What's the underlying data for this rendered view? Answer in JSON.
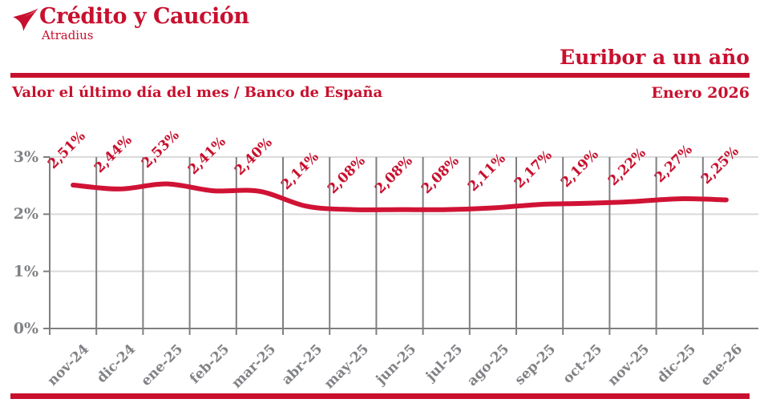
{
  "brand": {
    "name": "Crédito y Caución",
    "sub": "Atradius"
  },
  "header": {
    "title": "Euribor a un año",
    "subtitle": "Valor el último día del mes / Banco de España",
    "date": "Enero 2026"
  },
  "colors": {
    "red": "#C8102E",
    "line_red": "#D01335",
    "label_gray": "#808285",
    "grid_dark": "#7F7F7F",
    "grid_light": "#DADADA"
  },
  "chart_data": {
    "type": "line",
    "title": "Euribor a un año",
    "subtitle": "Valor el último día del mes / Banco de España",
    "categories": [
      "nov-24",
      "dic-24",
      "ene-25",
      "feb-25",
      "mar-25",
      "abr-25",
      "may-25",
      "jun-25",
      "jul-25",
      "ago-25",
      "sep-25",
      "oct-25",
      "nov-25",
      "dic-25",
      "ene-26"
    ],
    "values": [
      2.51,
      2.44,
      2.53,
      2.41,
      2.4,
      2.14,
      2.08,
      2.08,
      2.08,
      2.11,
      2.17,
      2.19,
      2.22,
      2.27,
      2.25
    ],
    "value_labels": [
      "2,51%",
      "2,44%",
      "2,53%",
      "2,41%",
      "2,40%",
      "2,14%",
      "2,08%",
      "2,08%",
      "2,08%",
      "2,11%",
      "2,17%",
      "2,19%",
      "2,22%",
      "2,27%",
      "2,25%"
    ],
    "yticks": [
      {
        "value": 0,
        "label": "0%"
      },
      {
        "value": 1,
        "label": "1%"
      },
      {
        "value": 2,
        "label": "2%"
      },
      {
        "value": 3,
        "label": "3%"
      }
    ],
    "ylim": [
      0,
      3
    ],
    "grid": true,
    "legend": false,
    "smooth": true
  }
}
